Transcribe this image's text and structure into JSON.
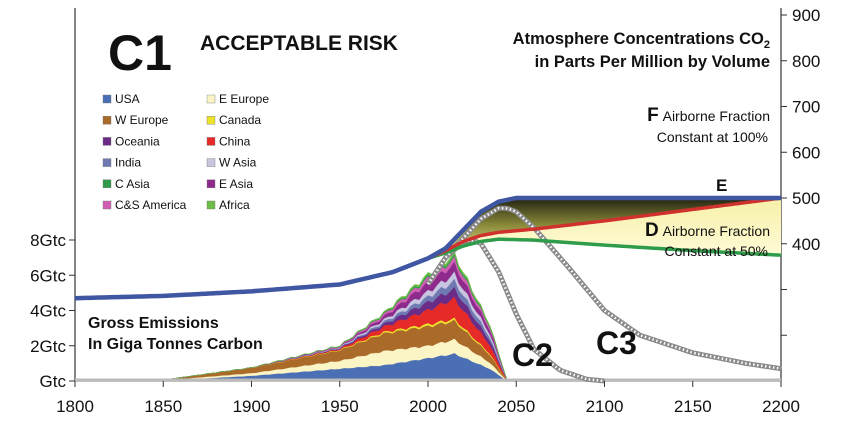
{
  "chart_data": {
    "type": "area",
    "title": "C1",
    "subtitle": "ACCEPTABLE RISK",
    "right_axis_title_line1": "Atmosphere Concentrations CO",
    "right_axis_title_sub": "2",
    "right_axis_title_line2": "in Parts Per Million by Volume",
    "left_axis_title_line1": "Gross Emissions",
    "left_axis_title_line2": "In Giga Tonnes Carbon",
    "x_ticks": [
      "1800",
      "1850",
      "1900",
      "1950",
      "2000",
      "2050",
      "2100",
      "2150",
      "2200"
    ],
    "xlim": [
      1800,
      2200
    ],
    "left_ticks": [
      "Gtc",
      "2Gtc",
      "4Gtc",
      "6Gtc",
      "8Gtc"
    ],
    "left_ylim": [
      0,
      8
    ],
    "right_ticks": [
      "400",
      "500",
      "600",
      "700",
      "800",
      "900"
    ],
    "right_ylim": [
      100,
      900
    ],
    "grid": false,
    "legend_placement": "top-left",
    "legend": [
      {
        "name": "USA",
        "color": "#4a6fb5"
      },
      {
        "name": "E Europe",
        "color": "#fbf5c6"
      },
      {
        "name": "W Europe",
        "color": "#a96a2a"
      },
      {
        "name": "Canada",
        "color": "#ece22a"
      },
      {
        "name": "Oceania",
        "color": "#6a2c86"
      },
      {
        "name": "China",
        "color": "#e52a28"
      },
      {
        "name": "India",
        "color": "#6f79b2"
      },
      {
        "name": "W Asia",
        "color": "#c7c5e0"
      },
      {
        "name": "C Asia",
        "color": "#2e9c4a"
      },
      {
        "name": "E Asia",
        "color": "#8e2a8c"
      },
      {
        "name": "C&S America",
        "color": "#cf5fb3"
      },
      {
        "name": "Africa",
        "color": "#6cbd45"
      }
    ],
    "emission_series": [
      {
        "name": "USA",
        "color": "#4a6fb5",
        "x": [
          1800,
          1850,
          1900,
          1950,
          1975,
          2000,
          2015,
          2035,
          2045
        ],
        "y": [
          0,
          0.02,
          0.3,
          0.7,
          0.9,
          1.3,
          1.55,
          0.7,
          0
        ]
      },
      {
        "name": "E Europe",
        "color": "#fbf5c6",
        "x": [
          1800,
          1850,
          1900,
          1950,
          1975,
          2000,
          2015,
          2035,
          2045
        ],
        "y": [
          0,
          0.02,
          0.15,
          0.45,
          0.8,
          0.7,
          0.8,
          0.35,
          0
        ]
      },
      {
        "name": "W Europe",
        "color": "#a96a2a",
        "x": [
          1800,
          1850,
          1900,
          1950,
          1975,
          2000,
          2015,
          2035,
          2045
        ],
        "y": [
          0,
          0.02,
          0.3,
          0.6,
          1.0,
          1.1,
          1.05,
          0.45,
          0
        ]
      },
      {
        "name": "Canada",
        "color": "#ece22a",
        "x": [
          1800,
          1850,
          1900,
          1950,
          1975,
          2000,
          2015,
          2035,
          2045
        ],
        "y": [
          0,
          0,
          0.01,
          0.03,
          0.08,
          0.12,
          0.12,
          0.06,
          0
        ]
      },
      {
        "name": "China",
        "color": "#e52a28",
        "x": [
          1800,
          1850,
          1900,
          1950,
          1975,
          2000,
          2015,
          2035,
          2045
        ],
        "y": [
          0,
          0,
          0,
          0.05,
          0.3,
          0.8,
          1.15,
          0.5,
          0
        ]
      },
      {
        "name": "Oceania",
        "color": "#6a2c86",
        "x": [
          1800,
          1850,
          1900,
          1950,
          1975,
          2000,
          2015,
          2035,
          2045
        ],
        "y": [
          0,
          0,
          0,
          0.03,
          0.15,
          0.45,
          0.55,
          0.25,
          0
        ]
      },
      {
        "name": "India",
        "color": "#6f79b2",
        "x": [
          1800,
          1850,
          1900,
          1950,
          1975,
          2000,
          2015,
          2035,
          2045
        ],
        "y": [
          0,
          0,
          0,
          0.03,
          0.12,
          0.3,
          0.45,
          0.2,
          0
        ]
      },
      {
        "name": "W Asia",
        "color": "#c7c5e0",
        "x": [
          1800,
          1850,
          1900,
          1950,
          1975,
          2000,
          2015,
          2035,
          2045
        ],
        "y": [
          0,
          0,
          0,
          0.03,
          0.12,
          0.3,
          0.4,
          0.18,
          0
        ]
      },
      {
        "name": "E Asia",
        "color": "#8e2a8c",
        "x": [
          1800,
          1850,
          1900,
          1950,
          1975,
          2000,
          2015,
          2035,
          2045
        ],
        "y": [
          0,
          0,
          0,
          0.03,
          0.18,
          0.5,
          0.55,
          0.25,
          0
        ]
      },
      {
        "name": "C&S America",
        "color": "#cf5fb3",
        "x": [
          1800,
          1850,
          1900,
          1950,
          1975,
          2000,
          2015,
          2035,
          2045
        ],
        "y": [
          0,
          0,
          0,
          0.03,
          0.12,
          0.25,
          0.3,
          0.14,
          0
        ]
      },
      {
        "name": "C Asia",
        "color": "#2e9c4a",
        "x": [
          1800,
          1850,
          1900,
          1950,
          1975,
          2000,
          2015,
          2035,
          2045
        ],
        "y": [
          0,
          0,
          0,
          0.02,
          0.05,
          0.1,
          0.12,
          0.06,
          0
        ]
      },
      {
        "name": "Africa",
        "color": "#6cbd45",
        "x": [
          1800,
          1850,
          1900,
          1950,
          1975,
          2000,
          2015,
          2035,
          2045
        ],
        "y": [
          0,
          0,
          0,
          0.01,
          0.05,
          0.12,
          0.15,
          0.08,
          0
        ]
      }
    ],
    "concentration_history": {
      "name": "Concentration",
      "color": "#3f56a3",
      "x": [
        1800,
        1850,
        1900,
        1950,
        1980,
        2000,
        2010,
        2020,
        2030,
        2040,
        2050,
        2200
      ],
      "y": [
        281,
        286,
        296,
        311,
        338,
        368,
        390,
        430,
        470,
        492,
        500,
        500
      ]
    },
    "concentration_F": {
      "color": "#3f56a3",
      "x": [
        2000,
        2010,
        2020,
        2030,
        2040,
        2050,
        2200
      ],
      "y": [
        368,
        390,
        430,
        470,
        492,
        500,
        500
      ]
    },
    "concentration_red": {
      "color": "#d0312d",
      "x": [
        2000,
        2010,
        2020,
        2030,
        2040,
        2060,
        2100,
        2150,
        2200
      ],
      "y": [
        368,
        385,
        405,
        418,
        425,
        432,
        450,
        475,
        500
      ]
    },
    "concentration_D": {
      "color": "#2e9c4a",
      "x": [
        2000,
        2010,
        2020,
        2030,
        2040,
        2060,
        2100,
        2150,
        2200
      ],
      "y": [
        368,
        380,
        395,
        405,
        410,
        408,
        397,
        385,
        375
      ]
    },
    "curve_C2": {
      "color": "#888888",
      "x": [
        2000,
        2010,
        2020,
        2025,
        2030,
        2040,
        2050,
        2060,
        2075,
        2090,
        2100
      ],
      "y": [
        5.5,
        7.0,
        7.9,
        8.0,
        7.8,
        6.2,
        3.8,
        1.8,
        0.6,
        0.1,
        0
      ]
    },
    "curve_C3": {
      "color": "#888888",
      "x": [
        2000,
        2010,
        2020,
        2030,
        2040,
        2045,
        2050,
        2060,
        2080,
        2100,
        2120,
        2150,
        2180,
        2200
      ],
      "y": [
        5.5,
        7.0,
        8.1,
        9.2,
        9.8,
        9.8,
        9.6,
        8.7,
        6.4,
        4.0,
        2.6,
        1.6,
        1.0,
        0.7
      ]
    },
    "annotations": {
      "F_letter": "F",
      "F_line1": "Airborne Fraction",
      "F_line2": "Constant at 100%",
      "D_letter": "D",
      "D_line1": "Airborne Fraction",
      "D_line2": "Constant at 50%",
      "E_label": "E",
      "C2_label": "C2",
      "C3_label": "C3"
    }
  }
}
